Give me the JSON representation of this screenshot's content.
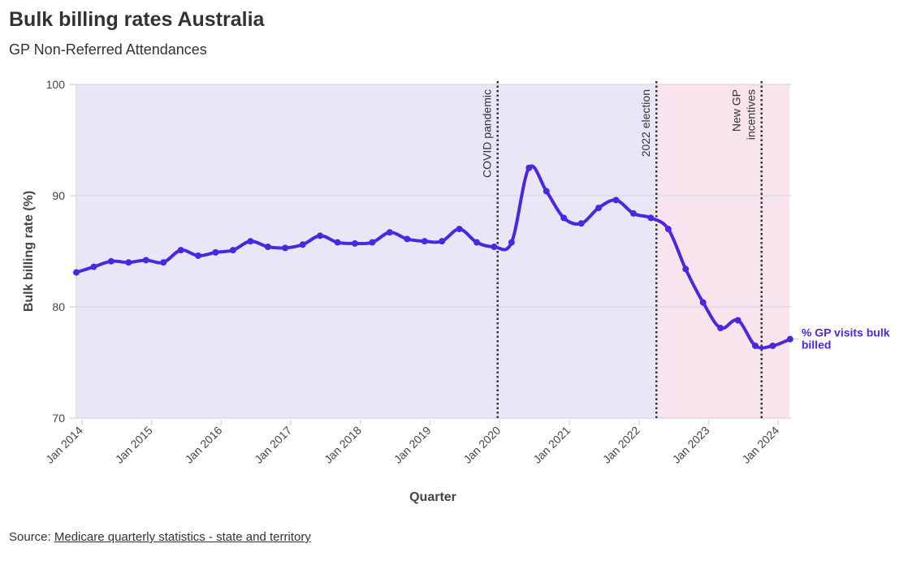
{
  "title": "Bulk billing rates Australia",
  "subtitle": "GP Non-Referred Attendances",
  "source": {
    "prefix": "Source: ",
    "link_text": "Medicare quarterly statistics - state and territory"
  },
  "chart_data": {
    "type": "line",
    "title": "Bulk billing rates Australia",
    "subtitle": "GP Non-Referred Attendances",
    "xlabel": "Quarter",
    "ylabel": "Bulk billing rate (%)",
    "ylim": [
      70,
      100
    ],
    "xlim": [
      2013.92,
      2024.16
    ],
    "yticks": [
      70,
      80,
      90,
      100
    ],
    "xticks": [
      {
        "value": 2014,
        "label": "Jan 2014"
      },
      {
        "value": 2015,
        "label": "Jan 2015"
      },
      {
        "value": 2016,
        "label": "Jan 2016"
      },
      {
        "value": 2017,
        "label": "Jan 2017"
      },
      {
        "value": 2018,
        "label": "Jan 2018"
      },
      {
        "value": 2019,
        "label": "Jan 2019"
      },
      {
        "value": 2020,
        "label": "Jan 2020"
      },
      {
        "value": 2021,
        "label": "Jan 2021"
      },
      {
        "value": 2022,
        "label": "Jan 2022"
      },
      {
        "value": 2023,
        "label": "Jan 2023"
      },
      {
        "value": 2024,
        "label": "Jan 2024"
      }
    ],
    "grid": true,
    "x_start": 2013.92,
    "x_step": 0.25,
    "series": [
      {
        "name": "% GP visits bulk billed",
        "label_lines": [
          "% GP visits bulk",
          "billed"
        ],
        "color": "#4a28e0",
        "values": [
          83.1,
          83.6,
          84.1,
          84.0,
          84.2,
          84.0,
          85.1,
          84.6,
          84.9,
          85.1,
          85.9,
          85.4,
          85.3,
          85.6,
          86.4,
          85.8,
          85.7,
          85.8,
          86.7,
          86.1,
          85.9,
          85.9,
          87.0,
          85.8,
          85.4,
          85.8,
          92.5,
          90.4,
          88.0,
          87.5,
          88.9,
          89.6,
          88.4,
          88.0,
          87.0,
          83.4,
          80.4,
          78.1,
          78.8,
          76.5,
          76.5,
          77.1
        ]
      }
    ],
    "shaded_regions": [
      {
        "from": 2013.92,
        "to": 2022.25,
        "color": "#e8e6f7"
      },
      {
        "from": 2022.25,
        "to": 2024.16,
        "color": "#f8e4ec"
      }
    ],
    "annotations": [
      {
        "x": 2019.97,
        "lines": [
          "COVID pandemic"
        ]
      },
      {
        "x": 2022.25,
        "lines": [
          "2022 election"
        ]
      },
      {
        "x": 2023.76,
        "lines": [
          "New GP",
          "incentives"
        ]
      }
    ]
  }
}
